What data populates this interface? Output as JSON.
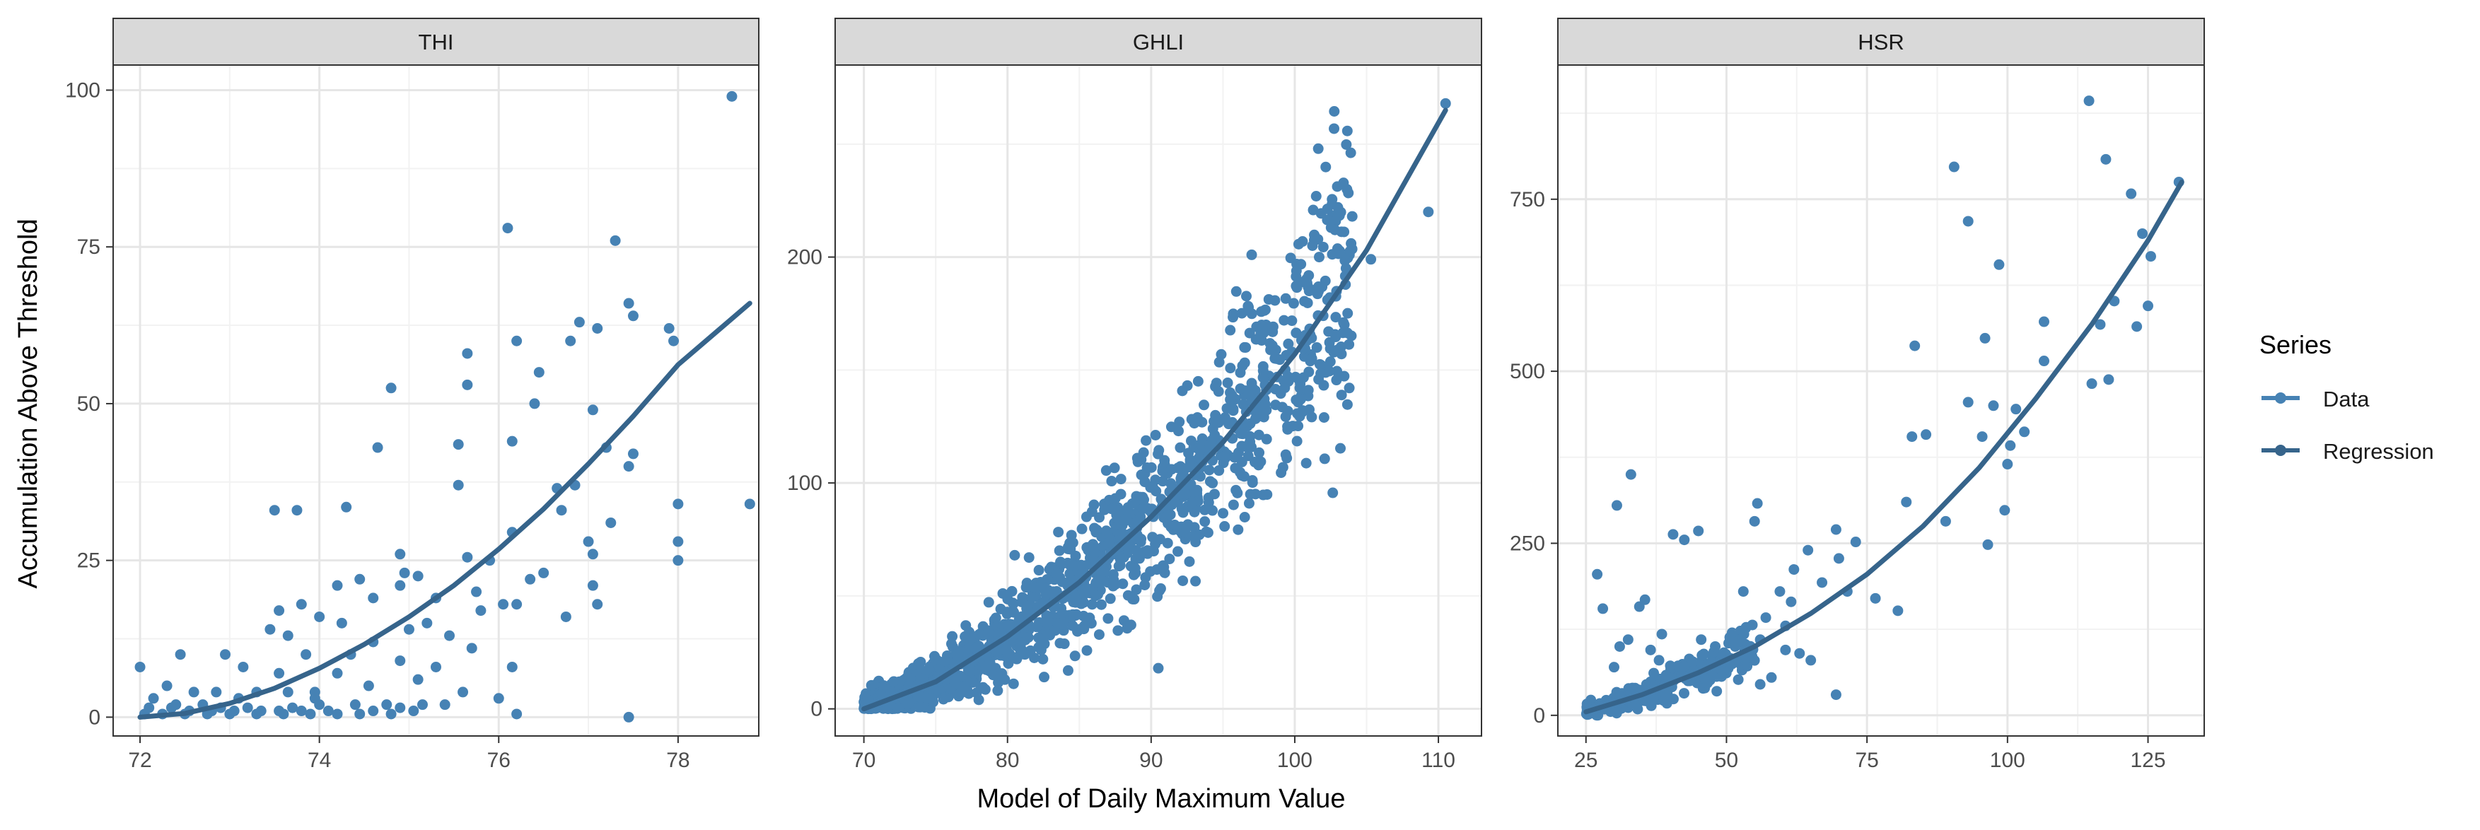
{
  "chart_data": {
    "type": "scatter",
    "xlabel": "Model of Daily Maximum Value",
    "ylabel": "Accumulation Above Threshold",
    "legend": {
      "title": "Series",
      "placement": "right",
      "entries": [
        {
          "name": "Data",
          "color": "#4682B4"
        },
        {
          "name": "Regression",
          "color": "#36648B"
        }
      ]
    },
    "grid": true,
    "facets": [
      {
        "label": "THI",
        "xlim": [
          71.7,
          78.9
        ],
        "ylim": [
          -3,
          104
        ],
        "xticks": [
          72,
          74,
          76,
          78
        ],
        "yticks": [
          0,
          25,
          50,
          75,
          100
        ],
        "regression": [
          [
            72.0,
            0.0
          ],
          [
            72.5,
            0.6
          ],
          [
            73.0,
            2.2
          ],
          [
            73.5,
            4.6
          ],
          [
            74.0,
            7.8
          ],
          [
            74.5,
            11.6
          ],
          [
            75.0,
            16.0
          ],
          [
            75.5,
            21.0
          ],
          [
            76.0,
            26.8
          ],
          [
            76.5,
            33.2
          ],
          [
            77.0,
            40.4
          ],
          [
            77.5,
            48.0
          ],
          [
            78.0,
            56.2
          ],
          [
            78.8,
            66.0
          ]
        ],
        "data": [
          [
            78.6,
            99
          ],
          [
            76.1,
            78
          ],
          [
            77.3,
            76
          ],
          [
            77.45,
            66
          ],
          [
            77.5,
            64
          ],
          [
            76.9,
            63
          ],
          [
            77.1,
            62
          ],
          [
            77.9,
            62
          ],
          [
            76.8,
            60
          ],
          [
            76.2,
            60
          ],
          [
            75.65,
            58
          ],
          [
            77.95,
            60
          ],
          [
            76.45,
            55
          ],
          [
            75.65,
            53
          ],
          [
            74.8,
            52.5
          ],
          [
            76.4,
            50
          ],
          [
            77.05,
            49
          ],
          [
            76.15,
            44
          ],
          [
            75.55,
            43.5
          ],
          [
            74.65,
            43
          ],
          [
            77.2,
            43
          ],
          [
            77.5,
            42
          ],
          [
            76.85,
            37
          ],
          [
            76.65,
            36.5
          ],
          [
            75.55,
            37
          ],
          [
            77.45,
            40
          ],
          [
            78.0,
            34
          ],
          [
            78.8,
            34
          ],
          [
            73.5,
            33
          ],
          [
            73.75,
            33
          ],
          [
            74.3,
            33.5
          ],
          [
            76.7,
            33
          ],
          [
            77.25,
            31
          ],
          [
            76.15,
            29.5
          ],
          [
            77.0,
            28
          ],
          [
            78.0,
            28
          ],
          [
            74.9,
            26
          ],
          [
            75.65,
            25.5
          ],
          [
            76.5,
            23
          ],
          [
            75.9,
            25
          ],
          [
            77.05,
            26
          ],
          [
            78.0,
            25
          ],
          [
            74.45,
            22
          ],
          [
            74.95,
            23
          ],
          [
            75.1,
            22.5
          ],
          [
            76.35,
            22
          ],
          [
            74.2,
            21
          ],
          [
            74.9,
            21
          ],
          [
            75.75,
            20
          ],
          [
            75.3,
            19
          ],
          [
            77.05,
            21
          ],
          [
            77.1,
            18
          ],
          [
            76.05,
            18
          ],
          [
            76.2,
            18
          ],
          [
            76.75,
            16
          ],
          [
            74.6,
            19
          ],
          [
            73.8,
            18
          ],
          [
            73.55,
            17
          ],
          [
            74.0,
            16
          ],
          [
            75.8,
            17
          ],
          [
            75.2,
            15
          ],
          [
            74.25,
            15
          ],
          [
            73.45,
            14
          ],
          [
            73.65,
            13
          ],
          [
            75.0,
            14
          ],
          [
            75.45,
            13
          ],
          [
            74.6,
            12
          ],
          [
            75.7,
            11
          ],
          [
            76.15,
            8
          ],
          [
            73.85,
            10
          ],
          [
            74.35,
            10
          ],
          [
            74.9,
            9
          ],
          [
            75.3,
            8
          ],
          [
            72.45,
            10
          ],
          [
            72.95,
            10
          ],
          [
            73.15,
            8
          ],
          [
            73.55,
            7
          ],
          [
            74.2,
            7
          ],
          [
            75.1,
            6
          ],
          [
            74.55,
            5
          ],
          [
            73.95,
            4
          ],
          [
            75.6,
            4
          ],
          [
            76.0,
            3
          ],
          [
            75.15,
            2
          ],
          [
            76.2,
            0.5
          ],
          [
            77.45,
            0
          ],
          [
            72.0,
            8
          ],
          [
            72.3,
            5
          ],
          [
            72.6,
            4
          ],
          [
            72.85,
            4
          ],
          [
            73.3,
            4
          ],
          [
            73.65,
            4
          ],
          [
            73.1,
            3
          ],
          [
            73.95,
            3
          ],
          [
            74.4,
            2
          ],
          [
            74.75,
            2
          ],
          [
            75.4,
            2
          ],
          [
            75.05,
            1
          ],
          [
            72.15,
            3
          ],
          [
            72.4,
            2
          ],
          [
            72.7,
            2
          ],
          [
            72.9,
            1.5
          ],
          [
            73.2,
            1.5
          ],
          [
            73.55,
            1
          ],
          [
            73.8,
            1
          ],
          [
            74.1,
            1
          ],
          [
            74.45,
            0.5
          ],
          [
            74.8,
            0.5
          ],
          [
            72.05,
            0.5
          ],
          [
            72.25,
            0.5
          ],
          [
            72.5,
            0.5
          ],
          [
            72.75,
            0.5
          ],
          [
            73.0,
            0.5
          ],
          [
            73.3,
            0.5
          ],
          [
            73.6,
            0.5
          ],
          [
            73.9,
            0.5
          ],
          [
            74.2,
            0.5
          ],
          [
            72.1,
            1.5
          ],
          [
            72.35,
            1.5
          ],
          [
            72.55,
            1
          ],
          [
            72.8,
            1
          ],
          [
            73.05,
            1
          ],
          [
            73.35,
            1
          ],
          [
            73.7,
            1.5
          ],
          [
            74.0,
            2
          ],
          [
            74.6,
            1
          ],
          [
            74.9,
            1.5
          ]
        ]
      },
      {
        "label": "GHLI",
        "xlim": [
          68,
          113
        ],
        "ylim": [
          -12,
          285
        ],
        "xticks": [
          70,
          80,
          90,
          100,
          110
        ],
        "yticks": [
          0,
          100,
          200
        ],
        "regression": [
          [
            70,
            0
          ],
          [
            75,
            12
          ],
          [
            80,
            32
          ],
          [
            85,
            56
          ],
          [
            90,
            85
          ],
          [
            95,
            118
          ],
          [
            100,
            157
          ],
          [
            105,
            203
          ],
          [
            110.5,
            265
          ]
        ],
        "data": [
          [
            110.5,
            268
          ],
          [
            109.3,
            220
          ],
          [
            103,
            222
          ],
          [
            104,
            218
          ],
          [
            105.3,
            199
          ],
          [
            102.8,
            212
          ],
          [
            101.7,
            200
          ],
          [
            97,
            201
          ],
          [
            90.5,
            18
          ],
          [
            72,
            7
          ],
          [
            74,
            5
          ],
          [
            71,
            3
          ],
          [
            73,
            2
          ],
          [
            80.5,
            68
          ],
          [
            81.5,
            67
          ],
          [
            85.5,
            85
          ],
          [
            85.2,
            60
          ],
          [
            78,
            4
          ],
          [
            79,
            15
          ],
          [
            87,
            40
          ],
          [
            94,
            115
          ],
          [
            95.5,
            140
          ],
          [
            96.5,
            160
          ],
          [
            98,
            170
          ],
          [
            101,
            185
          ],
          [
            92,
            95
          ],
          [
            89,
            80
          ]
        ],
        "cloud": {
          "x_from": 70,
          "x_to": 104,
          "count": 1400,
          "seed": 7
        }
      },
      {
        "label": "HSR",
        "xlim": [
          20,
          135
        ],
        "ylim": [
          -30,
          945
        ],
        "xticks": [
          25,
          50,
          75,
          100,
          125
        ],
        "yticks": [
          0,
          250,
          500,
          750
        ],
        "regression": [
          [
            25,
            5
          ],
          [
            35,
            30
          ],
          [
            45,
            62
          ],
          [
            55,
            100
          ],
          [
            65,
            148
          ],
          [
            75,
            205
          ],
          [
            85,
            275
          ],
          [
            95,
            360
          ],
          [
            105,
            460
          ],
          [
            115,
            568
          ],
          [
            125,
            690
          ],
          [
            131,
            775
          ]
        ],
        "data": [
          [
            114.5,
            893
          ],
          [
            90.5,
            797
          ],
          [
            117.5,
            808
          ],
          [
            122,
            758
          ],
          [
            130.5,
            775
          ],
          [
            93,
            718
          ],
          [
            98.5,
            655
          ],
          [
            124,
            700
          ],
          [
            119,
            602
          ],
          [
            125.5,
            667
          ],
          [
            116.5,
            568
          ],
          [
            125,
            595
          ],
          [
            123,
            565
          ],
          [
            118,
            488
          ],
          [
            115,
            482
          ],
          [
            106.5,
            572
          ],
          [
            106.5,
            515
          ],
          [
            96,
            548
          ],
          [
            93,
            455
          ],
          [
            97.5,
            450
          ],
          [
            101.5,
            445
          ],
          [
            103,
            412
          ],
          [
            95.5,
            405
          ],
          [
            100.5,
            392
          ],
          [
            100,
            365
          ],
          [
            83.5,
            537
          ],
          [
            83,
            405
          ],
          [
            85.5,
            408
          ],
          [
            82,
            310
          ],
          [
            89,
            282
          ],
          [
            99.5,
            298
          ],
          [
            96.5,
            248
          ],
          [
            33,
            350
          ],
          [
            30.5,
            305
          ],
          [
            27,
            205
          ],
          [
            55.5,
            308
          ],
          [
            55,
            282
          ],
          [
            40.5,
            263
          ],
          [
            45,
            268
          ],
          [
            42.5,
            255
          ],
          [
            69.5,
            270
          ],
          [
            70,
            228
          ],
          [
            73,
            252
          ],
          [
            64.5,
            240
          ],
          [
            62,
            212
          ],
          [
            67,
            193
          ],
          [
            71.5,
            180
          ],
          [
            76.5,
            170
          ],
          [
            80.5,
            152
          ],
          [
            59.5,
            180
          ],
          [
            61.5,
            165
          ],
          [
            53,
            180
          ],
          [
            57,
            142
          ],
          [
            60.5,
            130
          ],
          [
            53.5,
            128
          ],
          [
            56,
            110
          ],
          [
            51,
            120
          ],
          [
            48,
            100
          ],
          [
            45.5,
            110
          ],
          [
            49.5,
            88
          ],
          [
            44,
            78
          ],
          [
            44.5,
            62
          ],
          [
            46,
            55
          ],
          [
            38.5,
            118
          ],
          [
            36.5,
            95
          ],
          [
            32.5,
            110
          ],
          [
            35.5,
            168
          ],
          [
            34.5,
            158
          ],
          [
            28,
            155
          ],
          [
            31,
            100
          ],
          [
            30,
            70
          ],
          [
            38,
            80
          ],
          [
            40,
            72
          ],
          [
            60.5,
            95
          ],
          [
            63,
            90
          ],
          [
            65,
            80
          ],
          [
            58,
            55
          ],
          [
            56,
            45
          ],
          [
            69.5,
            30
          ]
        ],
        "cloud": {
          "x_from": 25,
          "x_to": 55,
          "count": 260,
          "seed": 11
        }
      }
    ]
  }
}
